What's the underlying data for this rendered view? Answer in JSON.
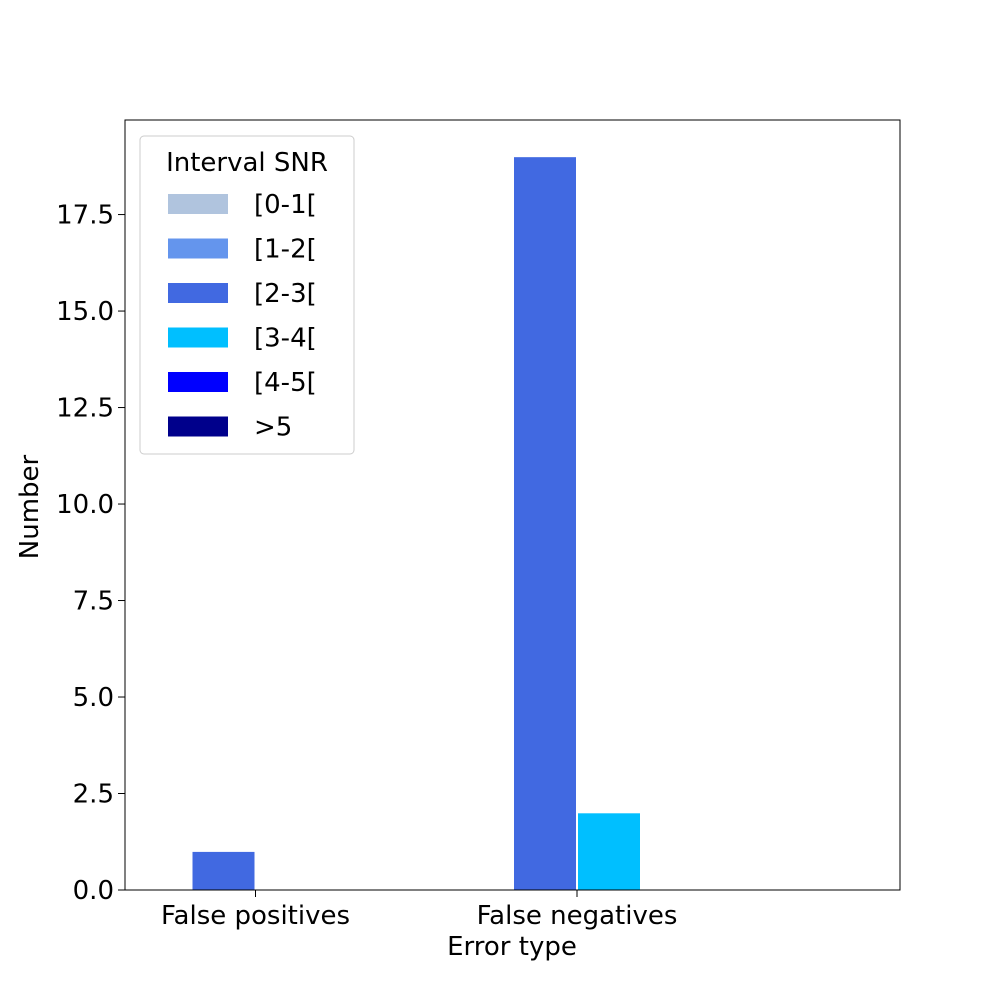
{
  "chart_data": {
    "type": "bar",
    "title": "",
    "xlabel": "Error type",
    "ylabel": "Number",
    "categories": [
      "False positives",
      "False negatives"
    ],
    "ylim": [
      0,
      19.95
    ],
    "yticks": [
      "0.0",
      "2.5",
      "5.0",
      "7.5",
      "10.0",
      "12.5",
      "15.0",
      "17.5"
    ],
    "ytick_values": [
      0,
      2.5,
      5,
      7.5,
      10,
      12.5,
      15,
      17.5
    ],
    "grid": false,
    "legend": {
      "title": "Interval SNR",
      "placement": "upper-left"
    },
    "series": [
      {
        "name": "[0-1[",
        "color": "#b0c4de",
        "values": [
          0,
          0
        ]
      },
      {
        "name": "[1-2[",
        "color": "#6495ed",
        "values": [
          0,
          0
        ]
      },
      {
        "name": "[2-3[",
        "color": "#4169e1",
        "values": [
          1,
          19
        ]
      },
      {
        "name": "[3-4[",
        "color": "#00bfff",
        "values": [
          0,
          2
        ]
      },
      {
        "name": "[4-5[",
        "color": "#0000ff",
        "values": [
          0,
          0
        ]
      },
      {
        "name": ">5",
        "color": "#00008b",
        "values": [
          0,
          0
        ]
      }
    ]
  }
}
